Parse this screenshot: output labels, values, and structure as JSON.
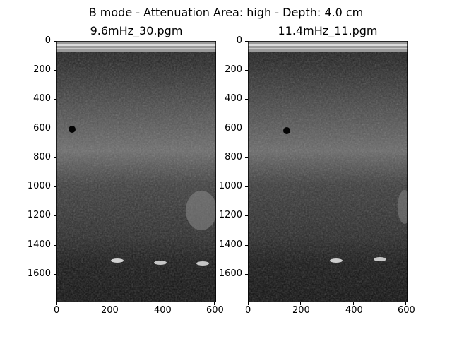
{
  "figure": {
    "suptitle": "B mode - Attenuation Area: high - Depth: 4.0 cm"
  },
  "panels": [
    {
      "title": "9.6mHz_30.pgm",
      "y_ticks": [
        "0",
        "200",
        "400",
        "600",
        "800",
        "1000",
        "1200",
        "1400",
        "1600"
      ],
      "x_ticks": [
        "0",
        "200",
        "400",
        "600"
      ],
      "xlim": [
        0,
        608
      ],
      "ylim": [
        1800,
        0
      ],
      "colormap": "gray"
    },
    {
      "title": "11.4mHz_11.pgm",
      "y_ticks": [
        "0",
        "200",
        "400",
        "600",
        "800",
        "1000",
        "1200",
        "1400",
        "1600"
      ],
      "x_ticks": [
        "0",
        "200",
        "400",
        "600"
      ],
      "xlim": [
        0,
        608
      ],
      "ylim": [
        1800,
        0
      ],
      "colormap": "gray"
    }
  ]
}
